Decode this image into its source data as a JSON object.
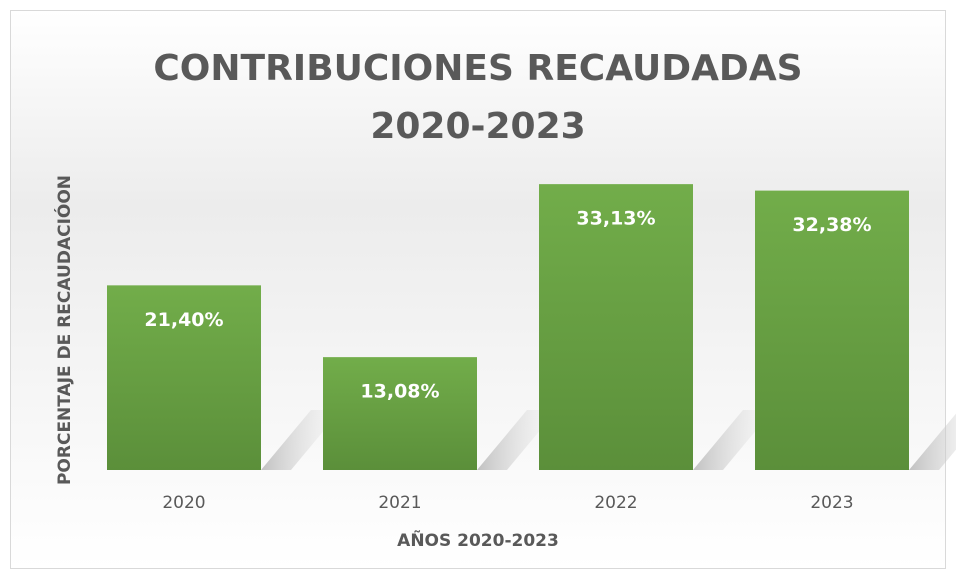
{
  "chart_data": {
    "type": "bar",
    "title": "CONTRIBUCIONES RECAUDADAS 2020-2023",
    "x_label": "AÑOS 2020-2023",
    "y_label": "PORCENTAJE DE RECAUDACIÓON",
    "categories": [
      "2020",
      "2021",
      "2022",
      "2023"
    ],
    "values": [
      21.4,
      13.08,
      33.13,
      32.38
    ],
    "value_labels": [
      "21,40%",
      "13,08%",
      "33,13%",
      "32,38%"
    ],
    "color": "#70ad47",
    "ylim": [
      0,
      35
    ],
    "grid": false
  }
}
